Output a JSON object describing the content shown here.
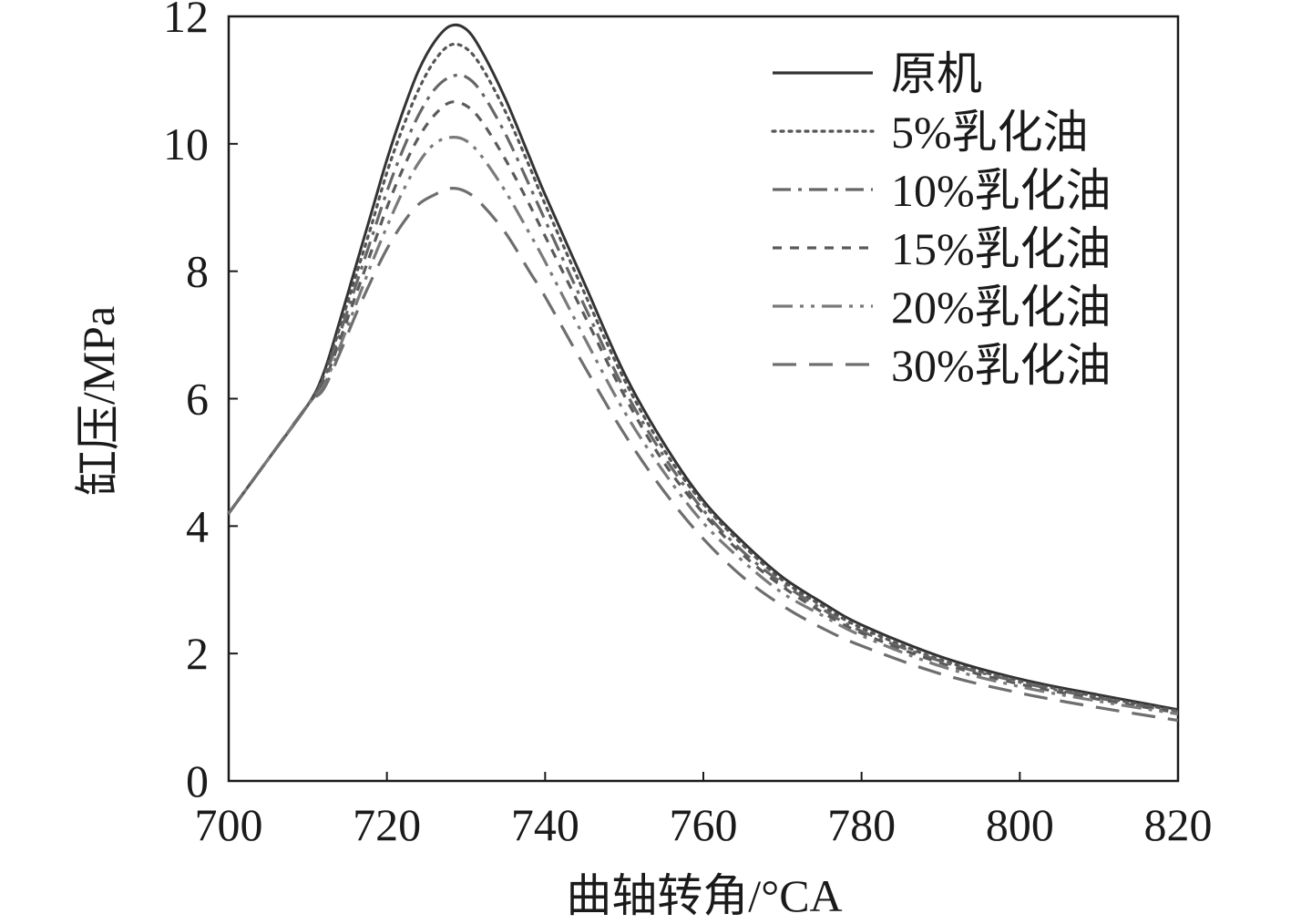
{
  "chart_data": {
    "type": "line",
    "title": "",
    "xlabel": "曲轴转角/°CA",
    "ylabel": "缸压/MPa",
    "xlim": [
      700,
      820
    ],
    "ylim": [
      0,
      12
    ],
    "x_ticks": [
      "700",
      "720",
      "740",
      "760",
      "780",
      "800",
      "820"
    ],
    "y_ticks": [
      "0",
      "2",
      "4",
      "6",
      "8",
      "10",
      "12"
    ],
    "grid": false,
    "legend_position": "top-right",
    "series": [
      {
        "name": "原机",
        "color": "#333333",
        "style": "solid",
        "x": [
          700,
          705,
          710,
          712,
          714,
          716,
          718,
          720,
          722,
          724,
          726,
          728,
          730,
          732,
          735,
          738,
          740,
          745,
          750,
          755,
          760,
          765,
          770,
          775,
          780,
          790,
          800,
          810,
          820
        ],
        "y": [
          4.2,
          5.05,
          5.9,
          6.4,
          7.2,
          8.05,
          8.9,
          9.75,
          10.5,
          11.15,
          11.6,
          11.85,
          11.8,
          11.45,
          10.7,
          9.8,
          9.2,
          7.8,
          6.4,
          5.3,
          4.4,
          3.75,
          3.2,
          2.8,
          2.45,
          1.95,
          1.6,
          1.35,
          1.12
        ]
      },
      {
        "name": "5%乳化油",
        "color": "#555555",
        "style": "dotted",
        "x": [
          700,
          705,
          710,
          712,
          714,
          716,
          718,
          720,
          722,
          724,
          726,
          728,
          730,
          732,
          735,
          738,
          740,
          745,
          750,
          755,
          760,
          765,
          770,
          775,
          780,
          790,
          800,
          810,
          820
        ],
        "y": [
          4.2,
          5.05,
          5.9,
          6.35,
          7.1,
          7.9,
          8.7,
          9.55,
          10.25,
          10.85,
          11.3,
          11.55,
          11.5,
          11.2,
          10.5,
          9.65,
          9.05,
          7.65,
          6.3,
          5.2,
          4.35,
          3.7,
          3.15,
          2.75,
          2.4,
          1.9,
          1.57,
          1.32,
          1.1
        ]
      },
      {
        "name": "10%乳化油",
        "color": "#666666",
        "style": "dashdot",
        "x": [
          700,
          705,
          710,
          712,
          714,
          716,
          718,
          720,
          722,
          724,
          726,
          728,
          730,
          732,
          735,
          738,
          740,
          745,
          750,
          755,
          760,
          765,
          770,
          775,
          780,
          790,
          800,
          810,
          820
        ],
        "y": [
          4.2,
          5.05,
          5.9,
          6.3,
          7.0,
          7.75,
          8.5,
          9.25,
          9.9,
          10.45,
          10.85,
          11.05,
          11.05,
          10.8,
          10.15,
          9.35,
          8.8,
          7.45,
          6.15,
          5.1,
          4.25,
          3.6,
          3.1,
          2.7,
          2.35,
          1.88,
          1.55,
          1.3,
          1.08
        ]
      },
      {
        "name": "15%乳化油",
        "color": "#5a5a5a",
        "style": "shortdash",
        "x": [
          700,
          705,
          710,
          712,
          714,
          716,
          718,
          720,
          722,
          724,
          726,
          728,
          730,
          732,
          735,
          738,
          740,
          745,
          750,
          755,
          760,
          765,
          770,
          775,
          780,
          790,
          800,
          810,
          820
        ],
        "y": [
          4.2,
          5.05,
          5.9,
          6.25,
          6.9,
          7.6,
          8.3,
          9.0,
          9.6,
          10.1,
          10.45,
          10.65,
          10.6,
          10.35,
          9.75,
          9.05,
          8.55,
          7.3,
          6.05,
          5.0,
          4.2,
          3.55,
          3.05,
          2.65,
          2.32,
          1.85,
          1.52,
          1.28,
          1.07
        ]
      },
      {
        "name": "20%乳化油",
        "color": "#7a7a7a",
        "style": "dashdotdot",
        "x": [
          700,
          705,
          710,
          712,
          714,
          716,
          718,
          720,
          722,
          724,
          726,
          728,
          730,
          732,
          735,
          738,
          740,
          745,
          750,
          755,
          760,
          765,
          770,
          775,
          780,
          790,
          800,
          810,
          820
        ],
        "y": [
          4.2,
          5.05,
          5.9,
          6.2,
          6.8,
          7.45,
          8.1,
          8.7,
          9.25,
          9.7,
          10.0,
          10.1,
          10.05,
          9.8,
          9.25,
          8.6,
          8.15,
          6.95,
          5.8,
          4.85,
          4.05,
          3.45,
          2.95,
          2.6,
          2.28,
          1.8,
          1.48,
          1.25,
          1.05
        ]
      },
      {
        "name": "30%乳化油",
        "color": "#6e6e6e",
        "style": "longdash",
        "x": [
          700,
          705,
          710,
          712,
          714,
          716,
          718,
          720,
          722,
          724,
          726,
          728,
          730,
          732,
          735,
          738,
          740,
          745,
          750,
          755,
          760,
          765,
          770,
          775,
          780,
          790,
          800,
          810,
          820
        ],
        "y": [
          4.2,
          5.05,
          5.9,
          6.15,
          6.7,
          7.3,
          7.85,
          8.35,
          8.75,
          9.05,
          9.2,
          9.3,
          9.25,
          9.05,
          8.6,
          8.0,
          7.6,
          6.5,
          5.45,
          4.55,
          3.8,
          3.2,
          2.75,
          2.4,
          2.12,
          1.68,
          1.38,
          1.15,
          0.95
        ]
      }
    ]
  }
}
